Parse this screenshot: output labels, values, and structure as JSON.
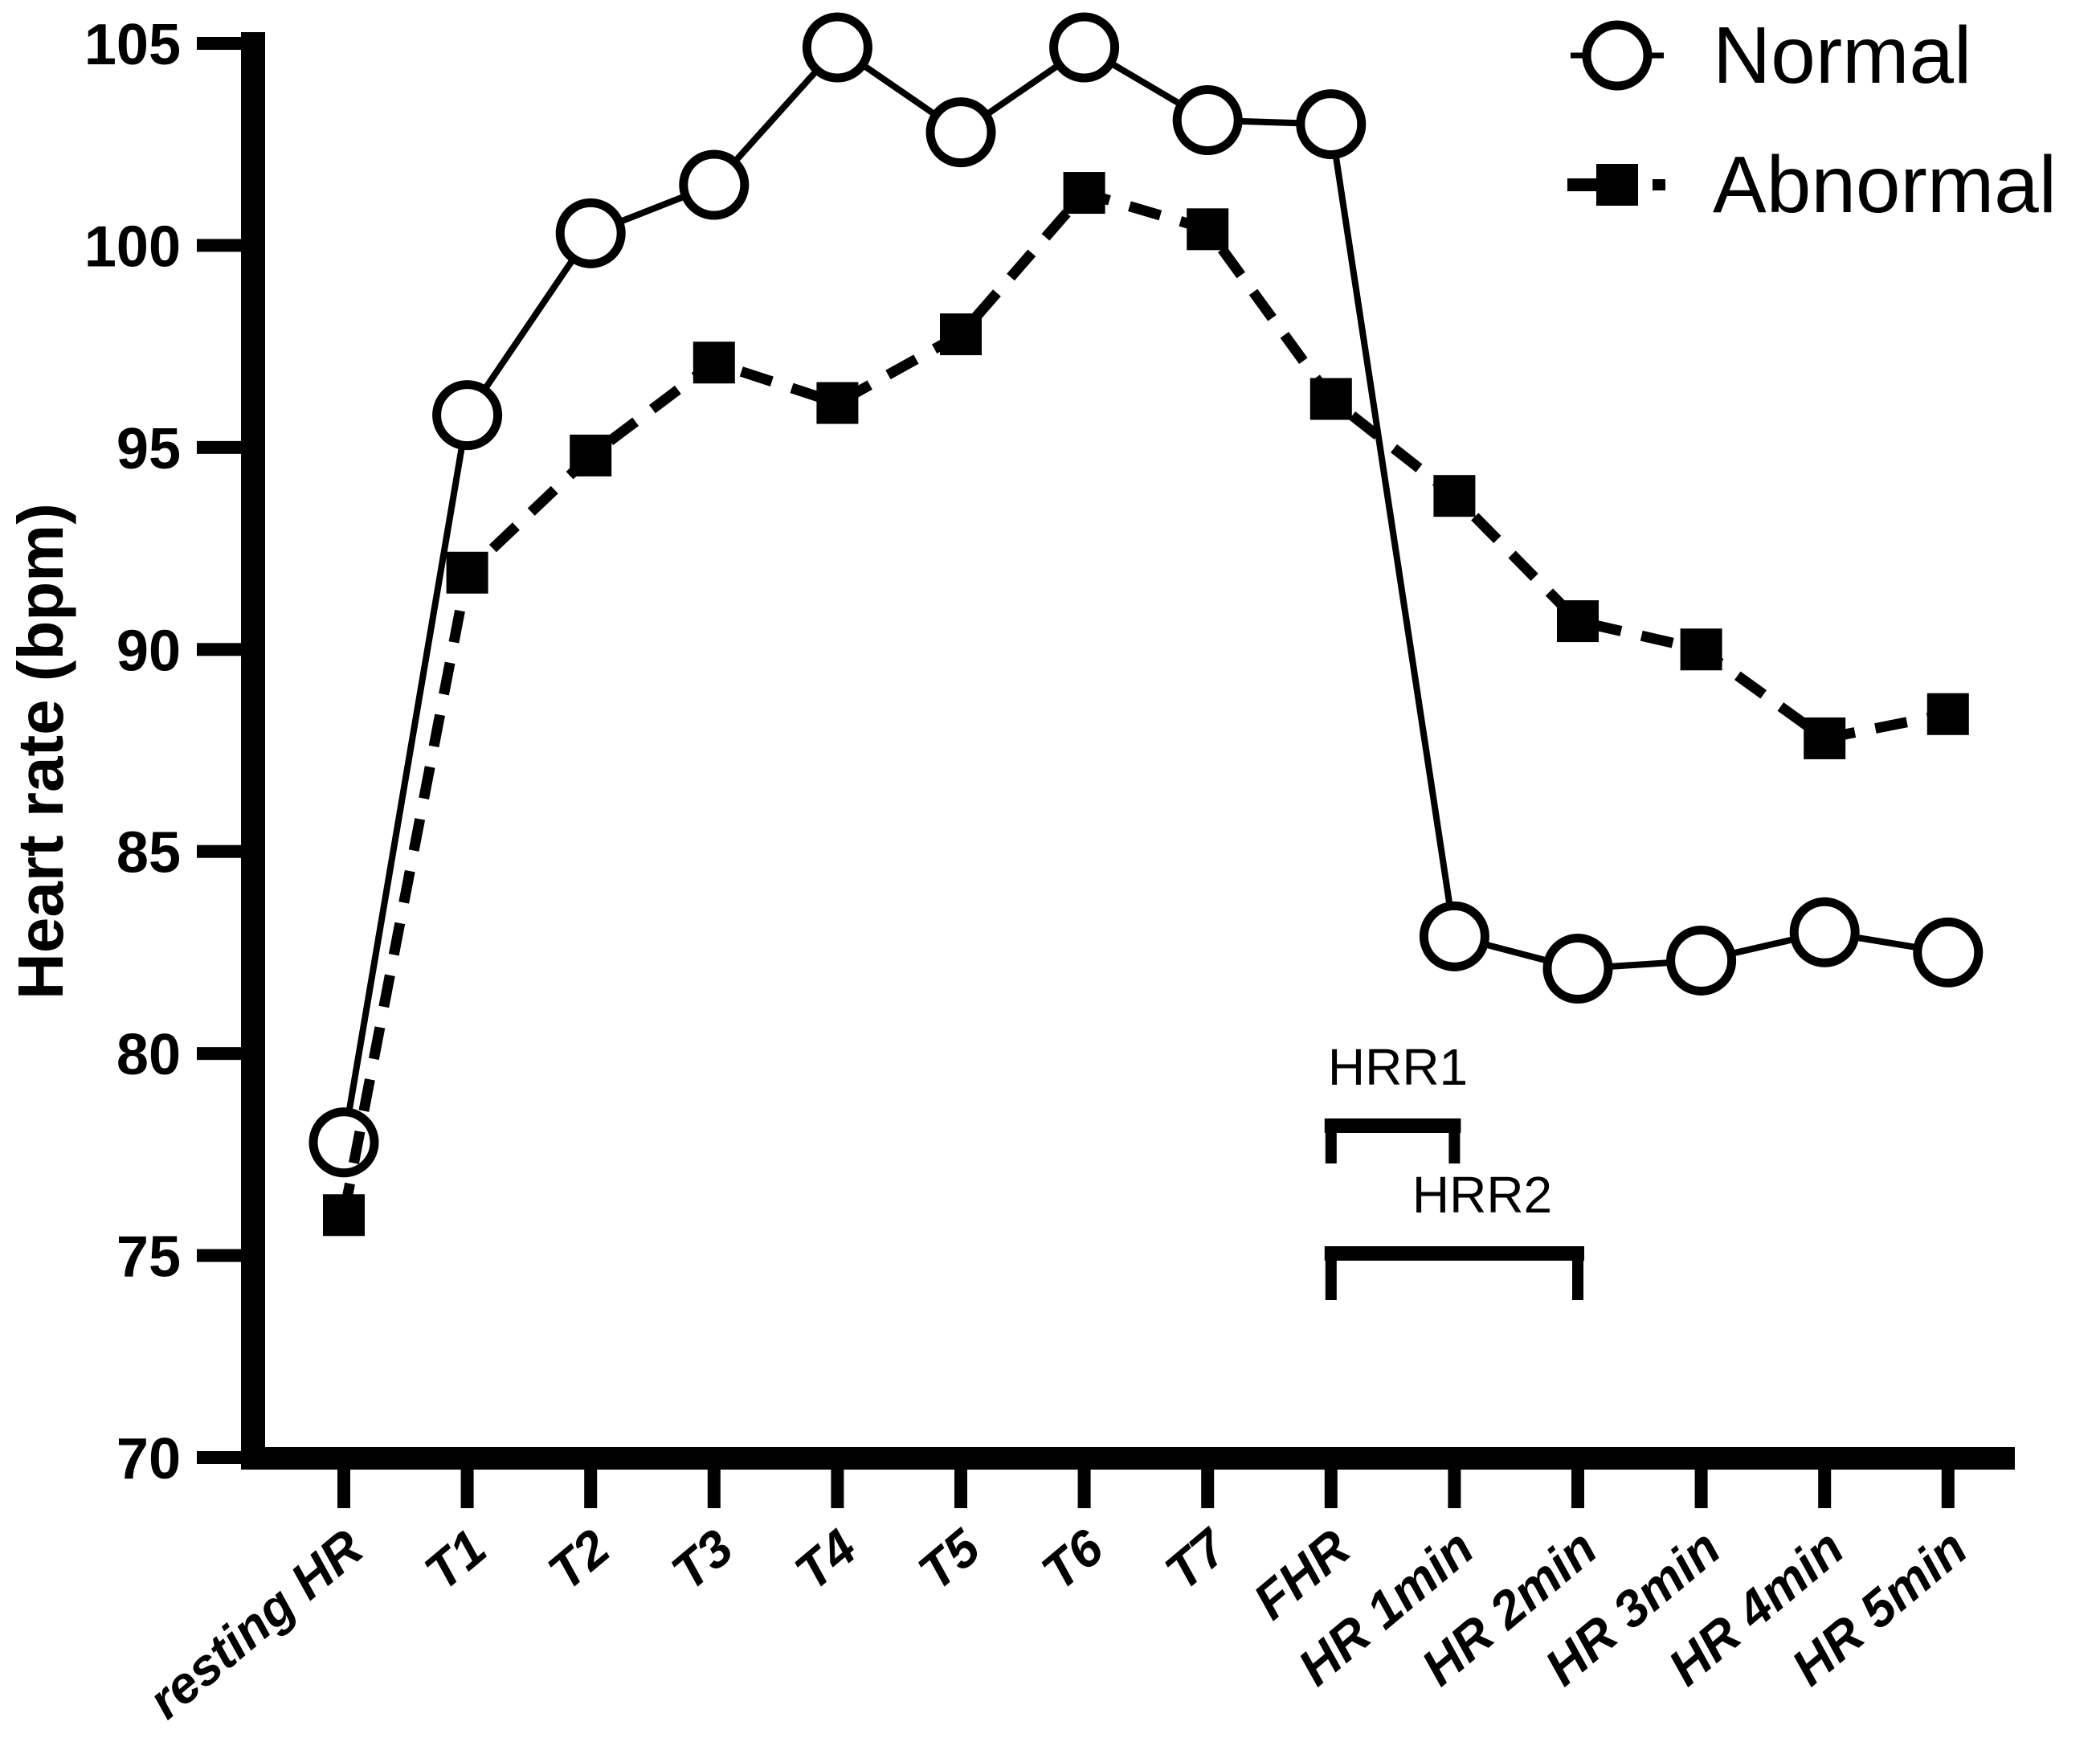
{
  "figure": {
    "background": "#ffffff",
    "ink_color": "#000000"
  },
  "chart_data": {
    "type": "line",
    "title": "",
    "xlabel": "",
    "ylabel": "Heart rate (bpm)",
    "ylim": [
      70,
      105
    ],
    "yticks": [
      70,
      75,
      80,
      85,
      90,
      95,
      100,
      105
    ],
    "grid": false,
    "legend_position": "top-right",
    "categories": [
      "resting HR",
      "T1",
      "T2",
      "T3",
      "T4",
      "T5",
      "T6",
      "T7",
      "FHR",
      "HR 1min",
      "HR 2min",
      "HR 3min",
      "HR 4min",
      "HR 5min"
    ],
    "series": [
      {
        "name": "Normal",
        "marker": "open-circle",
        "line_style": "solid",
        "values": [
          77.8,
          95.8,
          100.3,
          101.5,
          104.9,
          102.8,
          104.9,
          103.1,
          103.0,
          82.9,
          82.1,
          82.3,
          83.0,
          82.5
        ]
      },
      {
        "name": "Abnormal",
        "marker": "filled-square",
        "line_style": "dashed",
        "values": [
          76.0,
          91.9,
          94.8,
          97.1,
          96.1,
          97.8,
          101.3,
          100.4,
          96.2,
          93.8,
          90.7,
          90.0,
          87.8,
          88.4
        ]
      }
    ],
    "annotations": [
      {
        "label": "HRR1",
        "from_category": "FHR",
        "to_category": "HR 1min"
      },
      {
        "label": "HRR2",
        "from_category": "FHR",
        "to_category": "HR 2min"
      }
    ]
  }
}
